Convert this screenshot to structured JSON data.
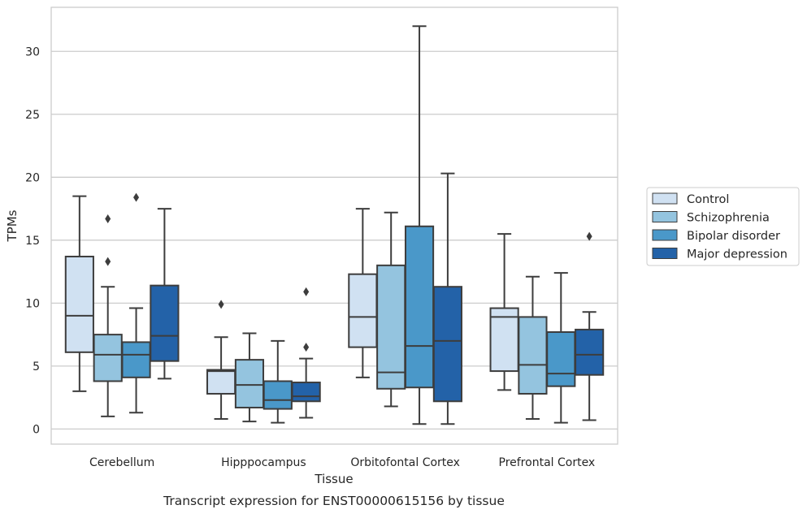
{
  "chart_data": {
    "type": "box",
    "xlabel": "Tissue",
    "ylabel": "TPMs",
    "caption": "Transcript expression for ENST00000615156 by tissue",
    "categories": [
      "Cerebellum",
      "Hipppocampus",
      "Orbitofontal Cortex",
      "Prefrontal Cortex"
    ],
    "yticks": [
      "0",
      "5",
      "10",
      "15",
      "20",
      "25",
      "30"
    ],
    "ylim": [
      -1.2,
      33.5
    ],
    "grid": true,
    "legend_position": "right",
    "colors": [
      "#d0e1f2",
      "#94c4df",
      "#4a98c9",
      "#2362a8"
    ],
    "series": [
      {
        "name": "Control",
        "boxes": [
          {
            "min": 3.0,
            "q1": 6.1,
            "median": 9.0,
            "q3": 13.7,
            "max": 18.5,
            "outliers": []
          },
          {
            "min": 0.8,
            "q1": 2.8,
            "median": 4.6,
            "q3": 4.7,
            "max": 7.3,
            "outliers": [
              9.9
            ]
          },
          {
            "min": 4.1,
            "q1": 6.5,
            "median": 8.9,
            "q3": 12.3,
            "max": 17.5,
            "outliers": []
          },
          {
            "min": 3.1,
            "q1": 4.6,
            "median": 8.9,
            "q3": 9.6,
            "max": 15.5,
            "outliers": []
          }
        ]
      },
      {
        "name": "Schizophrenia",
        "boxes": [
          {
            "min": 1.0,
            "q1": 3.8,
            "median": 5.9,
            "q3": 7.5,
            "max": 11.3,
            "outliers": [
              13.3,
              16.7
            ]
          },
          {
            "min": 0.6,
            "q1": 1.7,
            "median": 3.5,
            "q3": 5.5,
            "max": 7.6,
            "outliers": []
          },
          {
            "min": 1.8,
            "q1": 3.2,
            "median": 4.5,
            "q3": 13.0,
            "max": 17.2,
            "outliers": []
          },
          {
            "min": 0.8,
            "q1": 2.8,
            "median": 5.1,
            "q3": 8.9,
            "max": 12.1,
            "outliers": []
          }
        ]
      },
      {
        "name": "Bipolar disorder",
        "boxes": [
          {
            "min": 1.3,
            "q1": 4.1,
            "median": 5.9,
            "q3": 6.9,
            "max": 9.6,
            "outliers": [
              18.4
            ]
          },
          {
            "min": 0.5,
            "q1": 1.6,
            "median": 2.3,
            "q3": 3.8,
            "max": 7.0,
            "outliers": []
          },
          {
            "min": 0.4,
            "q1": 3.3,
            "median": 6.6,
            "q3": 16.1,
            "max": 32.0,
            "outliers": []
          },
          {
            "min": 0.5,
            "q1": 3.4,
            "median": 4.4,
            "q3": 7.7,
            "max": 12.4,
            "outliers": []
          }
        ]
      },
      {
        "name": "Major depression",
        "boxes": [
          {
            "min": 4.0,
            "q1": 5.4,
            "median": 7.4,
            "q3": 11.4,
            "max": 17.5,
            "outliers": []
          },
          {
            "min": 0.9,
            "q1": 2.2,
            "median": 2.6,
            "q3": 3.7,
            "max": 5.6,
            "outliers": [
              6.5,
              10.9
            ]
          },
          {
            "min": 0.4,
            "q1": 2.2,
            "median": 7.0,
            "q3": 11.3,
            "max": 20.3,
            "outliers": []
          },
          {
            "min": 0.7,
            "q1": 4.3,
            "median": 5.9,
            "q3": 7.9,
            "max": 9.3,
            "outliers": [
              15.3
            ]
          }
        ]
      }
    ]
  }
}
